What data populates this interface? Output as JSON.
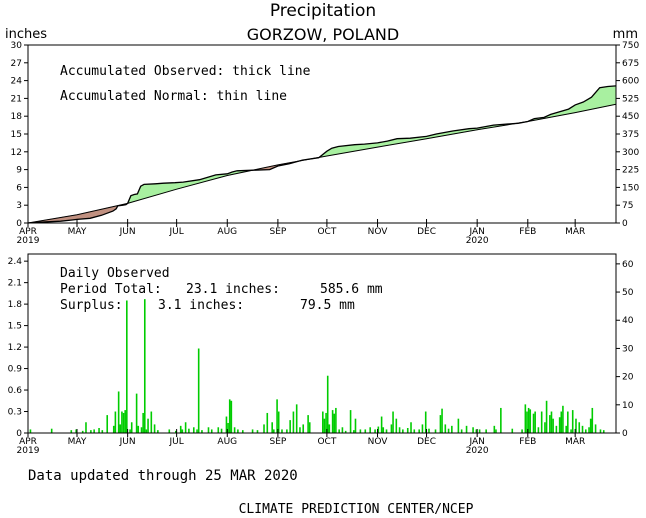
{
  "header": {
    "title": "Precipitation",
    "location": "GORZOW, POLAND",
    "left_unit": "inches",
    "right_unit": "mm"
  },
  "footer": {
    "updated": "Data updated through 25 MAR 2020",
    "credit": "CLIMATE PREDICTION CENTER/NCEP"
  },
  "colors": {
    "surplus": "#a8f0a0",
    "deficit": "#c09080",
    "bars": "#00cc00",
    "axis": "#000000"
  },
  "chart_data": [
    {
      "type": "line",
      "title": "",
      "legend_lines": [
        "Accumulated Observed: thick line",
        "Accumulated Normal: thin line"
      ],
      "x_tick_labels": [
        "APR",
        "MAY",
        "JUN",
        "JUL",
        "AUG",
        "SEP",
        "OCT",
        "NOV",
        "DEC",
        "JAN",
        "FEB",
        "MAR"
      ],
      "x_year_labels": [
        {
          "month": "APR",
          "year": "2019"
        },
        {
          "month": "JAN",
          "year": "2020"
        }
      ],
      "x_days": [
        0,
        30,
        61,
        91,
        122,
        153,
        183,
        214,
        244,
        275,
        306,
        335
      ],
      "x_range_days": [
        0,
        360
      ],
      "ylabel_left": "inches",
      "ylabel_right": "mm",
      "ylim_left": [
        0,
        30
      ],
      "yticks_left": [
        0,
        3,
        6,
        9,
        12,
        15,
        18,
        21,
        24,
        27,
        30
      ],
      "ylim_right": [
        0,
        750
      ],
      "yticks_right": [
        0,
        75,
        150,
        225,
        300,
        375,
        450,
        525,
        600,
        675,
        750
      ],
      "series": [
        {
          "name": "Accumulated Observed",
          "points": [
            [
              0,
              0
            ],
            [
              5,
              0.1
            ],
            [
              12,
              0.2
            ],
            [
              20,
              0.3
            ],
            [
              27,
              0.5
            ],
            [
              30,
              0.6
            ],
            [
              38,
              0.8
            ],
            [
              45,
              1.3
            ],
            [
              52,
              2.0
            ],
            [
              54,
              2.4
            ],
            [
              55,
              2.9
            ],
            [
              58,
              3.0
            ],
            [
              60,
              3.1
            ],
            [
              61,
              3.3
            ],
            [
              63,
              4.6
            ],
            [
              65,
              4.8
            ],
            [
              67,
              4.9
            ],
            [
              69,
              6.2
            ],
            [
              71,
              6.5
            ],
            [
              78,
              6.6
            ],
            [
              83,
              6.7
            ],
            [
              90,
              6.8
            ],
            [
              95,
              6.9
            ],
            [
              105,
              7.3
            ],
            [
              115,
              8.1
            ],
            [
              122,
              8.3
            ],
            [
              125,
              8.6
            ],
            [
              128,
              8.8
            ],
            [
              138,
              8.9
            ],
            [
              148,
              9.0
            ],
            [
              153,
              9.6
            ],
            [
              160,
              10.0
            ],
            [
              168,
              10.6
            ],
            [
              178,
              11.0
            ],
            [
              183,
              12.1
            ],
            [
              186,
              12.6
            ],
            [
              190,
              12.9
            ],
            [
              200,
              13.2
            ],
            [
              206,
              13.3
            ],
            [
              214,
              13.5
            ],
            [
              220,
              13.8
            ],
            [
              226,
              14.2
            ],
            [
              234,
              14.3
            ],
            [
              244,
              14.6
            ],
            [
              250,
              15.0
            ],
            [
              260,
              15.5
            ],
            [
              270,
              15.9
            ],
            [
              275,
              16.0
            ],
            [
              285,
              16.5
            ],
            [
              300,
              16.8
            ],
            [
              306,
              17.1
            ],
            [
              310,
              17.6
            ],
            [
              316,
              17.8
            ],
            [
              320,
              18.3
            ],
            [
              325,
              18.7
            ],
            [
              331,
              19.2
            ],
            [
              335,
              19.9
            ],
            [
              340,
              20.4
            ],
            [
              345,
              21.2
            ],
            [
              350,
              22.8
            ],
            [
              355,
              23.0
            ],
            [
              360,
              23.1
            ]
          ]
        },
        {
          "name": "Accumulated Normal",
          "points": [
            [
              0,
              0
            ],
            [
              30,
              1.4
            ],
            [
              61,
              3.3
            ],
            [
              91,
              5.7
            ],
            [
              122,
              8.0
            ],
            [
              153,
              9.8
            ],
            [
              183,
              11.3
            ],
            [
              214,
              12.8
            ],
            [
              244,
              14.2
            ],
            [
              275,
              15.7
            ],
            [
              306,
              17.1
            ],
            [
              335,
              18.6
            ],
            [
              360,
              20.0
            ]
          ]
        }
      ]
    },
    {
      "type": "bar",
      "title": "Daily Observed",
      "summary_lines": [
        {
          "label": "Period Total:",
          "inches": "23.1 inches:",
          "mm": "585.6 mm"
        },
        {
          "label": "Surplus:",
          "inches": "3.1 inches:",
          "mm": "79.5 mm"
        }
      ],
      "x_tick_labels": [
        "APR",
        "MAY",
        "JUN",
        "JUL",
        "AUG",
        "SEP",
        "OCT",
        "NOV",
        "DEC",
        "JAN",
        "FEB",
        "MAR"
      ],
      "x_year_labels": [
        {
          "month": "APR",
          "year": "2019"
        },
        {
          "month": "JAN",
          "year": "2020"
        }
      ],
      "x_days": [
        0,
        30,
        61,
        91,
        122,
        153,
        183,
        214,
        244,
        275,
        306,
        335
      ],
      "x_range_days": [
        0,
        360
      ],
      "ylim_left": [
        0,
        2.5
      ],
      "yticks_left": [
        "0",
        "0.3",
        "0.6",
        "0.9",
        "1.2",
        "1.5",
        "1.8",
        "2.1",
        "2.4"
      ],
      "ylim_right": [
        0,
        63.5
      ],
      "yticks_right": [
        0,
        10,
        20,
        30,
        40,
        50,
        60
      ],
      "bars": [
        [
          1,
          0.05
        ],
        [
          14,
          0.06
        ],
        [
          26,
          0.04
        ],
        [
          29,
          0.05
        ],
        [
          33,
          0.03
        ],
        [
          35,
          0.15
        ],
        [
          38,
          0.04
        ],
        [
          40,
          0.05
        ],
        [
          43,
          0.07
        ],
        [
          45,
          0.04
        ],
        [
          48,
          0.25
        ],
        [
          52,
          0.1
        ],
        [
          53,
          0.3
        ],
        [
          55,
          0.58
        ],
        [
          56,
          0.12
        ],
        [
          57,
          0.3
        ],
        [
          58,
          0.28
        ],
        [
          59,
          0.32
        ],
        [
          60,
          1.85
        ],
        [
          62,
          0.05
        ],
        [
          63,
          0.15
        ],
        [
          66,
          0.55
        ],
        [
          67,
          0.1
        ],
        [
          69,
          0.08
        ],
        [
          70,
          0.28
        ],
        [
          71,
          1.87
        ],
        [
          72,
          0.05
        ],
        [
          73,
          0.2
        ],
        [
          75,
          0.3
        ],
        [
          77,
          0.12
        ],
        [
          79,
          0.04
        ],
        [
          86,
          0.05
        ],
        [
          90,
          0.03
        ],
        [
          93,
          0.1
        ],
        [
          94,
          0.05
        ],
        [
          96,
          0.15
        ],
        [
          98,
          0.06
        ],
        [
          101,
          0.08
        ],
        [
          103,
          0.05
        ],
        [
          104,
          1.18
        ],
        [
          106,
          0.04
        ],
        [
          110,
          0.08
        ],
        [
          112,
          0.05
        ],
        [
          116,
          0.08
        ],
        [
          118,
          0.06
        ],
        [
          121,
          0.23
        ],
        [
          122,
          0.14
        ],
        [
          123,
          0.47
        ],
        [
          124,
          0.45
        ],
        [
          126,
          0.08
        ],
        [
          128,
          0.05
        ],
        [
          131,
          0.04
        ],
        [
          137,
          0.05
        ],
        [
          140,
          0.04
        ],
        [
          144,
          0.12
        ],
        [
          146,
          0.28
        ],
        [
          149,
          0.15
        ],
        [
          150,
          0.05
        ],
        [
          152,
          0.47
        ],
        [
          153,
          0.3
        ],
        [
          155,
          0.05
        ],
        [
          158,
          0.05
        ],
        [
          160,
          0.18
        ],
        [
          162,
          0.3
        ],
        [
          164,
          0.4
        ],
        [
          166,
          0.08
        ],
        [
          168,
          0.12
        ],
        [
          171,
          0.25
        ],
        [
          172,
          0.15
        ],
        [
          180,
          0.3
        ],
        [
          181,
          0.2
        ],
        [
          182,
          0.28
        ],
        [
          183,
          0.8
        ],
        [
          184,
          0.12
        ],
        [
          186,
          0.32
        ],
        [
          187,
          0.27
        ],
        [
          188,
          0.35
        ],
        [
          190,
          0.05
        ],
        [
          192,
          0.08
        ],
        [
          194,
          0.03
        ],
        [
          197,
          0.32
        ],
        [
          199,
          0.04
        ],
        [
          200,
          0.2
        ],
        [
          203,
          0.05
        ],
        [
          206,
          0.05
        ],
        [
          209,
          0.08
        ],
        [
          212,
          0.05
        ],
        [
          214,
          0.09
        ],
        [
          216,
          0.23
        ],
        [
          217,
          0.08
        ],
        [
          219,
          0.05
        ],
        [
          222,
          0.12
        ],
        [
          223,
          0.3
        ],
        [
          225,
          0.2
        ],
        [
          227,
          0.08
        ],
        [
          229,
          0.05
        ],
        [
          232,
          0.07
        ],
        [
          234,
          0.15
        ],
        [
          236,
          0.05
        ],
        [
          239,
          0.05
        ],
        [
          241,
          0.12
        ],
        [
          243,
          0.3
        ],
        [
          245,
          0.06
        ],
        [
          249,
          0.05
        ],
        [
          252,
          0.25
        ],
        [
          253,
          0.34
        ],
        [
          255,
          0.12
        ],
        [
          257,
          0.06
        ],
        [
          259,
          0.1
        ],
        [
          263,
          0.2
        ],
        [
          265,
          0.05
        ],
        [
          268,
          0.1
        ],
        [
          272,
          0.08
        ],
        [
          274,
          0.05
        ],
        [
          276,
          0.05
        ],
        [
          280,
          0.05
        ],
        [
          285,
          0.1
        ],
        [
          286,
          0.05
        ],
        [
          289,
          0.35
        ],
        [
          296,
          0.06
        ],
        [
          302,
          0.05
        ],
        [
          304,
          0.4
        ],
        [
          305,
          0.3
        ],
        [
          306,
          0.35
        ],
        [
          307,
          0.33
        ],
        [
          309,
          0.27
        ],
        [
          310,
          0.3
        ],
        [
          312,
          0.08
        ],
        [
          314,
          0.3
        ],
        [
          316,
          0.15
        ],
        [
          317,
          0.45
        ],
        [
          319,
          0.25
        ],
        [
          320,
          0.3
        ],
        [
          321,
          0.2
        ],
        [
          323,
          0.1
        ],
        [
          325,
          0.22
        ],
        [
          326,
          0.3
        ],
        [
          327,
          0.38
        ],
        [
          329,
          0.1
        ],
        [
          330,
          0.3
        ],
        [
          332,
          0.05
        ],
        [
          333,
          0.32
        ],
        [
          335,
          0.2
        ],
        [
          337,
          0.15
        ],
        [
          339,
          0.1
        ],
        [
          341,
          0.05
        ],
        [
          343,
          0.08
        ],
        [
          344,
          0.2
        ],
        [
          345,
          0.35
        ],
        [
          347,
          0.12
        ],
        [
          350,
          0.05
        ],
        [
          352,
          0.04
        ]
      ]
    }
  ]
}
